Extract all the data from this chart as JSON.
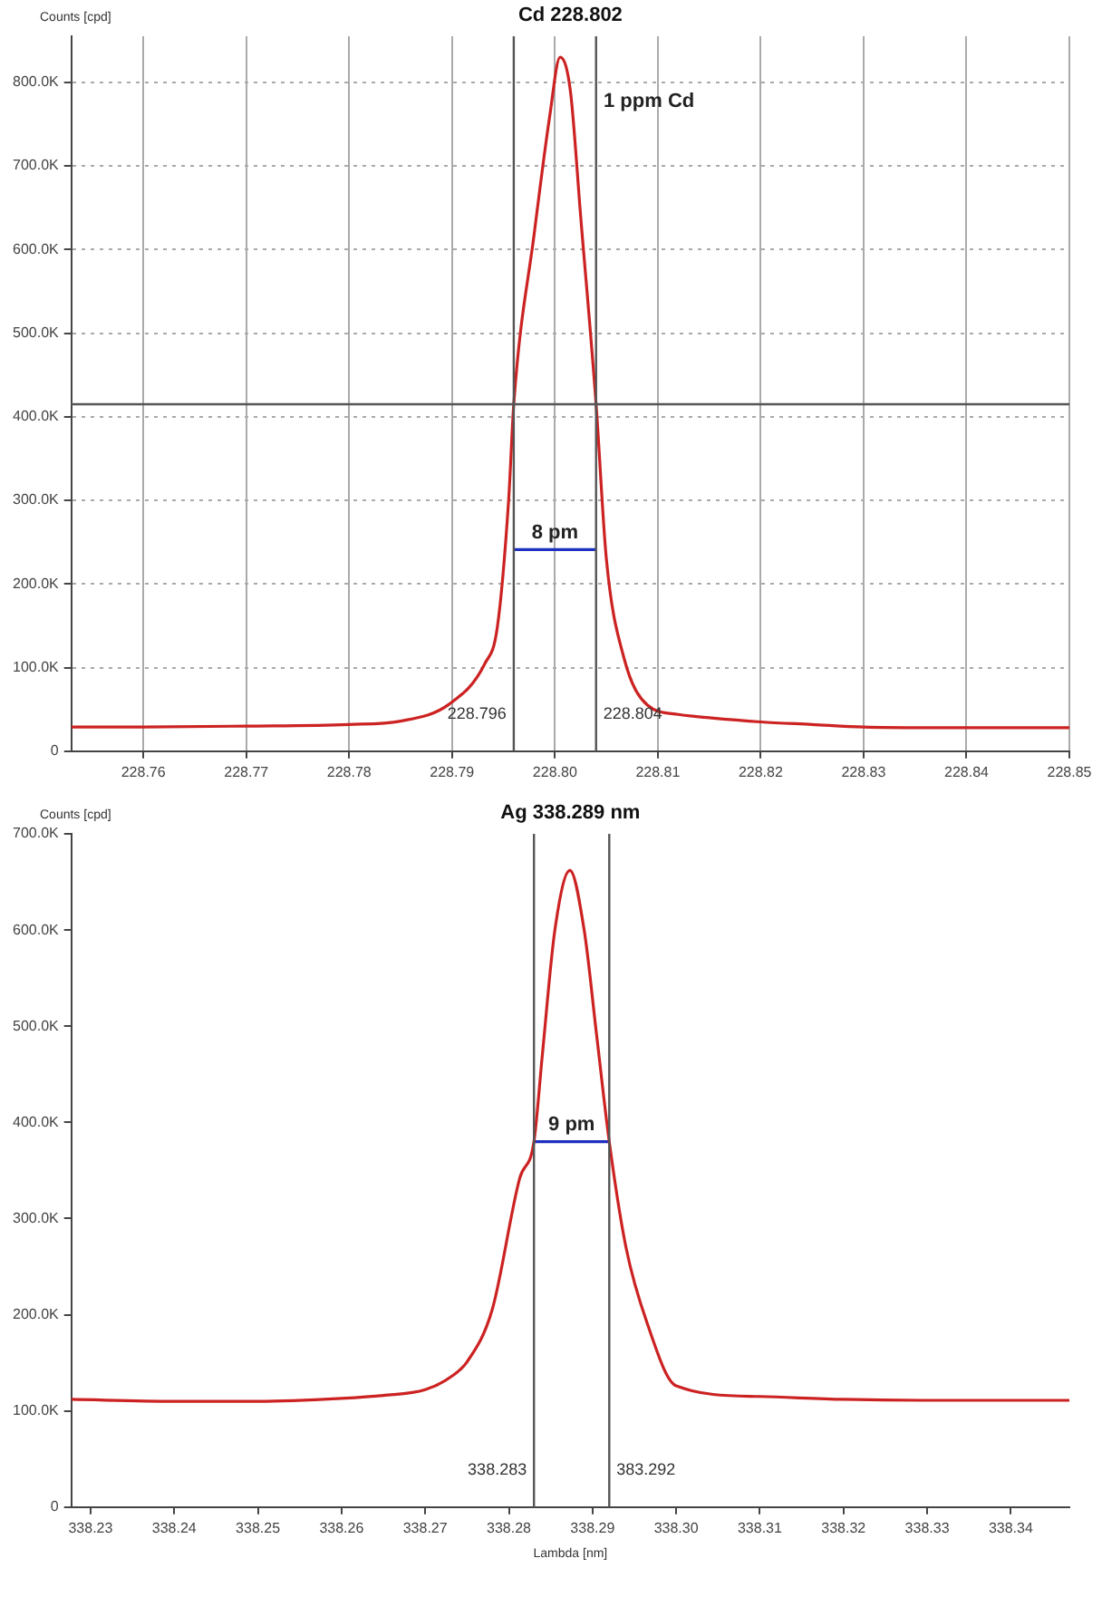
{
  "chart_data": [
    {
      "type": "line",
      "title": "Cd 228.802",
      "ylabel": "Counts [cpd]",
      "marker": "none",
      "grid": true,
      "legend": false,
      "xlim": [
        228.753,
        228.85
      ],
      "xticks": [
        228.76,
        228.77,
        228.78,
        228.79,
        {
          "value": 228.8,
          "label": "228.80"
        },
        228.81,
        228.82,
        228.83,
        228.84,
        228.85
      ],
      "ylim": [
        0,
        855000
      ],
      "yticks": [
        {
          "value": 0,
          "label": "0"
        },
        {
          "value": 100000,
          "label": "100.0K"
        },
        {
          "value": 200000,
          "label": "200.0K"
        },
        {
          "value": 300000,
          "label": "300.0K"
        },
        {
          "value": 400000,
          "label": "400.0K"
        },
        {
          "value": 500000,
          "label": "500.0K"
        },
        {
          "value": 600000,
          "label": "600.0K"
        },
        {
          "value": 700000,
          "label": "700.0K"
        },
        {
          "value": 800000,
          "label": "800.0K"
        }
      ],
      "series": [
        {
          "color": "#cc2222",
          "x": [
            228.753,
            228.76,
            228.77,
            228.78,
            228.785,
            228.7897,
            228.7932,
            228.7944,
            228.7955,
            228.796,
            228.798,
            228.7995,
            228.8005,
            228.8015,
            228.8025,
            228.804,
            228.805,
            228.8067,
            228.809,
            228.812,
            228.815,
            228.82,
            228.825,
            228.83,
            228.84,
            228.85
          ],
          "values": [
            29000,
            29000,
            30000,
            32000,
            36000,
            56000,
            105000,
            148000,
            300000,
            415000,
            620000,
            760000,
            830000,
            790000,
            640000,
            415000,
            230000,
            112000,
            55000,
            44000,
            40000,
            35000,
            32000,
            29000,
            28000,
            28000
          ]
        },
        {
          "type": "line",
          "color": "#1f2fbf",
          "x": [
            228.796,
            228.804
          ],
          "values": [
            241000,
            241000
          ]
        }
      ],
      "ref_lines": [
        {
          "axis": "y",
          "value": 415000,
          "color": "#555555"
        },
        {
          "axis": "x",
          "value": 228.796,
          "label": "228.796",
          "color": "#555555"
        },
        {
          "axis": "x",
          "value": 228.804,
          "label": "228.804",
          "color": "#555555"
        }
      ],
      "annotations": [
        "8 pm",
        "1 ppm Cd"
      ]
    },
    {
      "type": "line",
      "title": "Ag 338.289 nm",
      "ylabel": "Counts [cpd]",
      "xlabel": "Lambda [nm]",
      "marker": "none",
      "grid": false,
      "legend": false,
      "xlim": [
        338.2277,
        338.347
      ],
      "xticks": [
        338.23,
        338.24,
        338.25,
        338.26,
        338.27,
        338.28,
        338.29,
        {
          "value": 338.3,
          "label": "338.30"
        },
        338.31,
        338.32,
        338.33,
        338.34
      ],
      "ylim": [
        0,
        700000
      ],
      "yticks": [
        {
          "value": 0,
          "label": "0"
        },
        {
          "value": 100000,
          "label": "100.0K"
        },
        {
          "value": 200000,
          "label": "200.0K"
        },
        {
          "value": 300000,
          "label": "300.0K"
        },
        {
          "value": 400000,
          "label": "400.0K"
        },
        {
          "value": 500000,
          "label": "500.0K"
        },
        {
          "value": 600000,
          "label": "600.0K"
        },
        {
          "value": 700000,
          "label": "700.0K"
        }
      ],
      "series": [
        {
          "color": "#cc2222",
          "x": [
            338.2277,
            338.24,
            338.25,
            338.26,
            338.265,
            338.27,
            338.273,
            338.275,
            338.278,
            338.2813,
            338.283,
            338.284,
            338.2855,
            338.2873,
            338.289,
            338.2905,
            338.292,
            338.294,
            338.2965,
            338.3,
            338.31,
            338.32,
            338.33,
            338.34,
            338.347
          ],
          "values": [
            112000,
            110000,
            110000,
            113000,
            116000,
            122000,
            135000,
            151000,
            205000,
            342000,
            380000,
            470000,
            600000,
            662000,
            600000,
            490000,
            380000,
            270000,
            192000,
            126000,
            115000,
            112000,
            111000,
            111000,
            111000
          ]
        },
        {
          "type": "line",
          "color": "#1f2fbf",
          "x": [
            338.283,
            338.292
          ],
          "values": [
            380000,
            380000
          ]
        }
      ],
      "ref_lines": [
        {
          "axis": "x",
          "value": 338.283,
          "label": "338.283",
          "color": "#555555"
        },
        {
          "axis": "x",
          "value": 338.292,
          "color": "#555555"
        }
      ],
      "annotations": [
        "383.292",
        "9 pm"
      ]
    }
  ]
}
